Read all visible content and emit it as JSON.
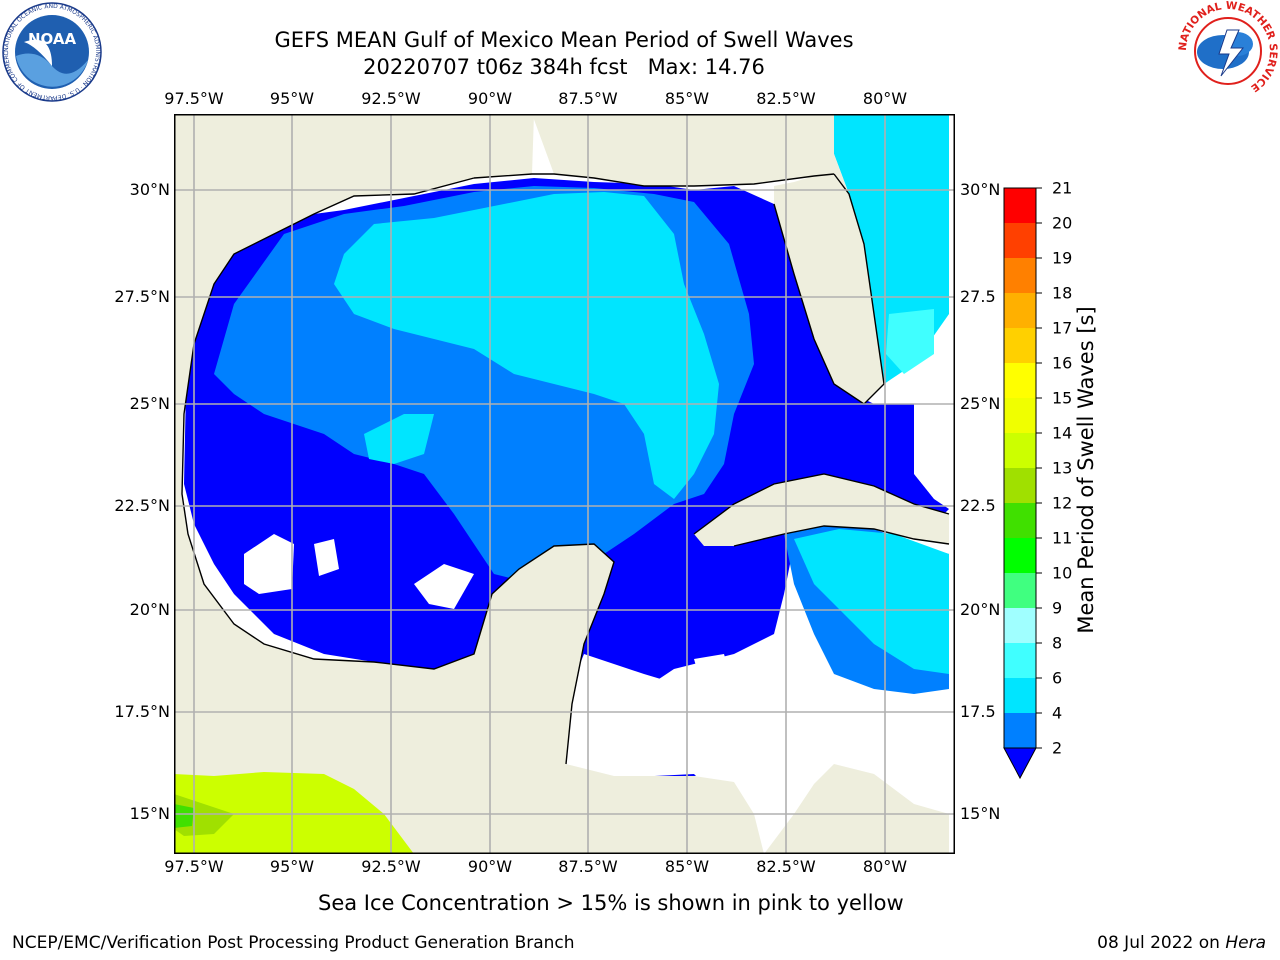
{
  "title_line1": "GEFS MEAN Gulf of Mexico Mean Period of Swell Waves",
  "title_line2": "20220707 t06z 384h fcst   Max: 14.76",
  "map": {
    "lon_ticks": [
      "97.5°W",
      "95°W",
      "92.5°W",
      "90°W",
      "87.5°W",
      "85°W",
      "82.5°W",
      "80°W"
    ],
    "lat_ticks_left": [
      "30°N",
      "27.5°N",
      "25°N",
      "22.5°N",
      "20°N",
      "17.5°N",
      "15°N"
    ],
    "lat_ticks_right": [
      "30°N",
      "27.5",
      "25°N",
      "22.5",
      "20°N",
      "17.5",
      "15°N"
    ],
    "land_color": "#eeeedd",
    "no_data_color": "#ffffff",
    "grid_color": "#b0b0b0"
  },
  "colorbar": {
    "label": "Mean Period of Swell Waves [s]",
    "ticks": [
      "2",
      "4",
      "6",
      "8",
      "9",
      "10",
      "11",
      "12",
      "13",
      "14",
      "15",
      "16",
      "17",
      "18",
      "19",
      "20",
      "21"
    ],
    "colors": [
      "#0000ff",
      "#0080ff",
      "#00e5ff",
      "#40ffff",
      "#a0ffff",
      "#40ff80",
      "#00ff00",
      "#40e000",
      "#a0e000",
      "#ccff00",
      "#f0ff00",
      "#ffff00",
      "#ffd000",
      "#ffb000",
      "#ff8000",
      "#ff4000",
      "#ff0000"
    ]
  },
  "sub_note": "Sea Ice Concentration > 15% is shown in pink to yellow",
  "credit": "NCEP/EMC/Verification Post Processing Product Generation Branch",
  "footer_date": "08 Jul 2022 on ",
  "footer_host": "Hera",
  "logos": {
    "left": "NOAA",
    "left_ring": "NATIONAL OCEANIC AND ATMOSPHERIC ADMINISTRATION · U.S. DEPARTMENT OF COMMERCE",
    "right_ring": "NATIONAL WEATHER SERVICE"
  }
}
